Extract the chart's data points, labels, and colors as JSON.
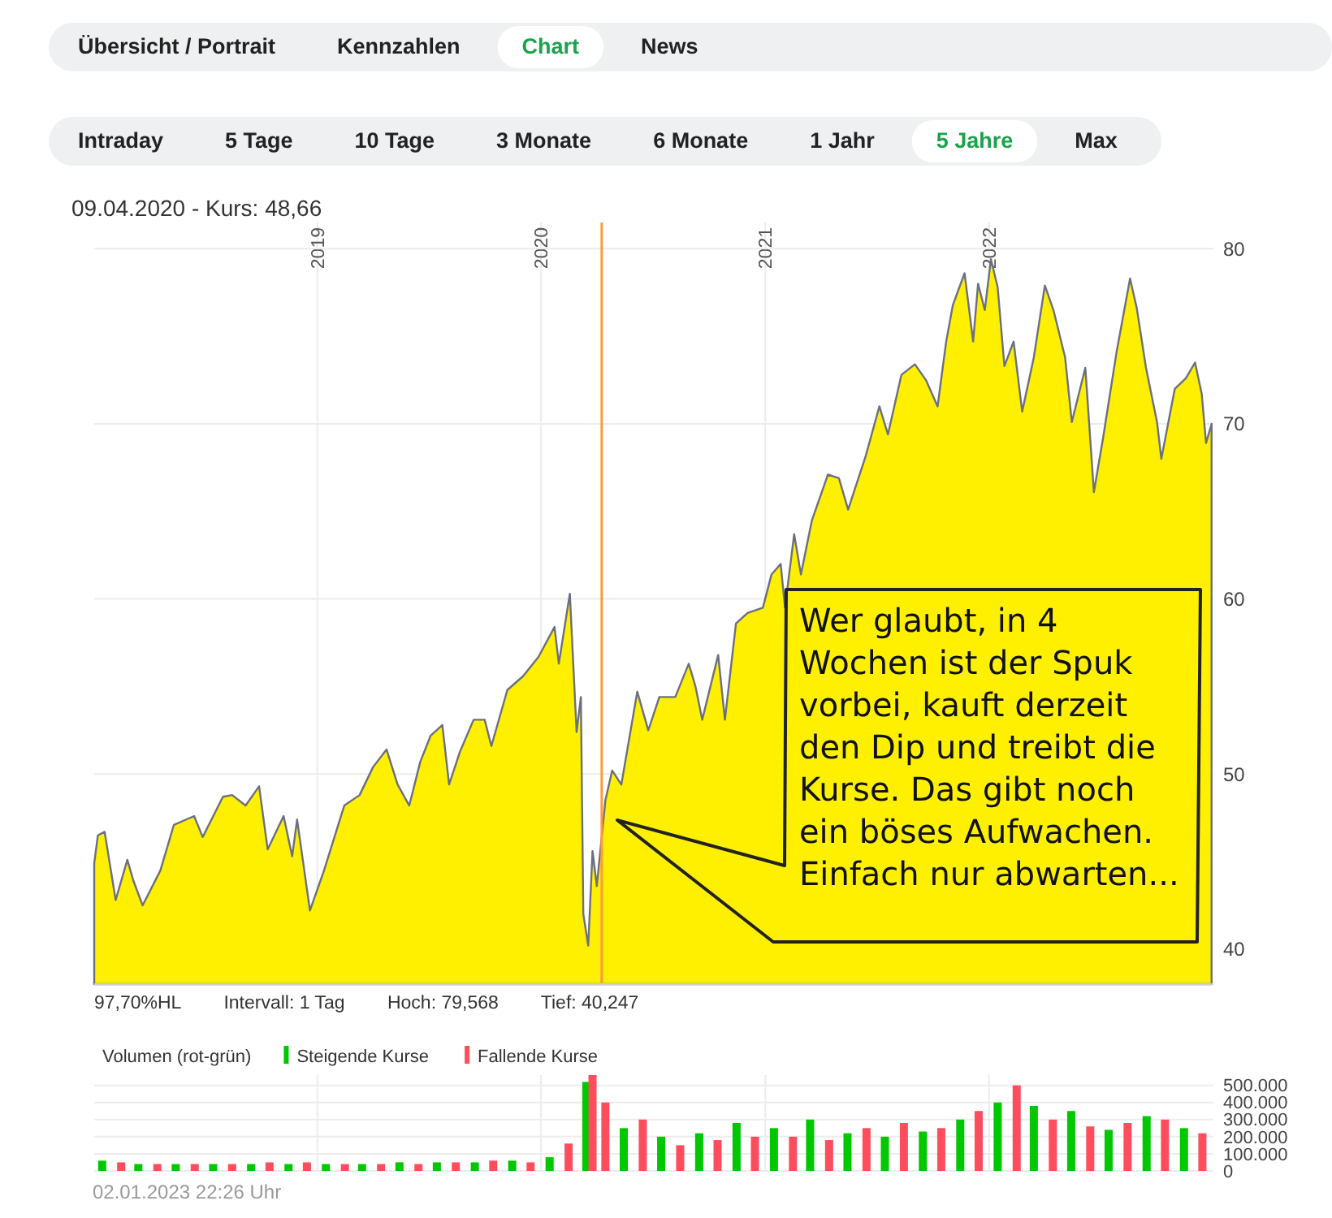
{
  "chart_data": [
    {
      "type": "other",
      "annotations": [
        "Übersicht / Portrait",
        "Kennzahlen",
        "Chart",
        "News"
      ]
    },
    {
      "type": "other",
      "annotations": [
        "Intraday",
        "5 Tage",
        "10 Tage",
        "3 Monate",
        "6 Monate",
        "1 Jahr",
        "5 Jahre",
        "Max"
      ]
    },
    {
      "type": "area",
      "title": "09.04.2020  -  Kurs: 48,66",
      "x": [
        "2018-01-02",
        "2018-01-08",
        "2018-01-19",
        "2018-02-06",
        "2018-02-25",
        "2018-03-07",
        "2018-03-22",
        "2018-04-20",
        "2018-05-12",
        "2018-06-14",
        "2018-06-28",
        "2018-07-31",
        "2018-08-15",
        "2018-09-06",
        "2018-09-28",
        "2018-10-12",
        "2018-11-07",
        "2018-11-21",
        "2018-11-29",
        "2018-12-20",
        "2019-01-12",
        "2019-02-14",
        "2019-03-11",
        "2019-04-02",
        "2019-04-24",
        "2019-05-12",
        "2019-05-31",
        "2019-06-18",
        "2019-07-05",
        "2019-07-24",
        "2019-08-04",
        "2019-08-22",
        "2019-09-13",
        "2019-10-01",
        "2019-10-12",
        "2019-11-07",
        "2019-12-03",
        "2019-12-28",
        "2020-01-23",
        "2020-01-30",
        "2020-02-17",
        "2020-02-28",
        "2020-03-06",
        "2020-03-10",
        "2020-03-18",
        "2020-03-25",
        "2020-04-01",
        "2020-04-15",
        "2020-04-26",
        "2020-05-11",
        "2020-06-06",
        "2020-06-24",
        "2020-07-12",
        "2020-07-23",
        "2020-08-07",
        "2020-08-29",
        "2020-09-09",
        "2020-09-20",
        "2020-10-16",
        "2020-10-27",
        "2020-11-14",
        "2020-12-03",
        "2020-12-28",
        "2021-01-11",
        "2021-01-26",
        "2021-02-02",
        "2021-02-17",
        "2021-02-28",
        "2021-03-18",
        "2021-04-13",
        "2021-05-01",
        "2021-05-16",
        "2021-06-14",
        "2021-07-06",
        "2021-07-20",
        "2021-08-11",
        "2021-09-02",
        "2021-09-20",
        "2021-10-09",
        "2021-10-23",
        "2021-11-03",
        "2021-11-22",
        "2021-12-06",
        "2021-12-14",
        "2021-12-25",
        "2022-01-04",
        "2022-01-15",
        "2022-01-26",
        "2022-02-10",
        "2022-02-24",
        "2022-03-15",
        "2022-04-02",
        "2022-04-16",
        "2022-05-05",
        "2022-05-16",
        "2022-06-07",
        "2022-06-21",
        "2022-07-06",
        "2022-07-28",
        "2022-08-19",
        "2022-08-30",
        "2022-09-14",
        "2022-10-02",
        "2022-10-09",
        "2022-10-31",
        "2022-11-18",
        "2022-12-03",
        "2022-12-14",
        "2022-12-21",
        "2022-12-30"
      ],
      "series": [
        {
          "color": "#fff000",
          "values": [
            44.9,
            46.5,
            46.7,
            42.8,
            45.1,
            43.9,
            42.5,
            44.5,
            47.1,
            47.6,
            46.4,
            48.7,
            48.8,
            48.2,
            49.3,
            45.7,
            47.6,
            45.3,
            47.4,
            42.2,
            44.5,
            48.2,
            48.8,
            50.4,
            51.4,
            49.4,
            48.2,
            50.7,
            52.2,
            52.8,
            49.4,
            51.3,
            53.1,
            53.1,
            51.6,
            54.8,
            55.6,
            56.7,
            58.4,
            56.3,
            60.3,
            52.4,
            54.4,
            42.0,
            40.2,
            45.6,
            43.6,
            48.5,
            50.2,
            49.4,
            54.7,
            52.5,
            54.4,
            54.4,
            54.4,
            56.3,
            55.0,
            53.1,
            56.8,
            53.1,
            58.6,
            59.2,
            59.5,
            61.4,
            62.0,
            59.5,
            63.7,
            61.4,
            64.5,
            67.1,
            66.9,
            65.1,
            68.2,
            71.0,
            69.4,
            72.8,
            73.4,
            72.5,
            71.0,
            74.7,
            76.8,
            78.6,
            74.7,
            78.0,
            76.5,
            79.4,
            77.8,
            73.3,
            74.7,
            70.7,
            73.8,
            77.9,
            76.5,
            73.8,
            70.1,
            73.2,
            66.1,
            69.2,
            74.1,
            78.3,
            76.6,
            73.2,
            70.1,
            68.0,
            72.0,
            72.6,
            73.5,
            71.7,
            68.9,
            70.0
          ]
        }
      ],
      "xlim": [
        "2018-01-02",
        "2023-01-02"
      ],
      "xticks": [
        {
          "value": "2019-01-01",
          "label": "2019"
        },
        {
          "value": "2020-01-01",
          "label": "2020"
        },
        {
          "value": "2021-01-01",
          "label": "2021"
        },
        {
          "value": "2022-01-01",
          "label": "2022"
        }
      ],
      "ylim": [
        38,
        81.5
      ],
      "yticks": [
        40,
        50,
        60,
        70,
        80
      ],
      "grid": true,
      "ref_lines": [
        {
          "axis": "x",
          "value": "2020-04-09",
          "color": "#ff9a3c"
        }
      ],
      "annotations": [
        "97,70%HL",
        "Intervall: 1 Tag",
        "Hoch: 79,568",
        "Tief: 40,247",
        "Wer glaubt, in 4 Wochen ist der Spuk vorbei, kauft derzeit den Dip und treibt die Kurse. Das gibt noch ein böses Aufwachen. Einfach nur abwarten..."
      ]
    },
    {
      "type": "bar",
      "legend_title": "Volumen (rot-grün)",
      "legend": "top left",
      "tick_labels": "y",
      "grid": true,
      "xlim": [
        "2018-01-02",
        "2023-01-02"
      ],
      "xticks": [
        {
          "value": "2019-01-01",
          "label": null
        },
        {
          "value": "2020-01-01",
          "label": null
        },
        {
          "value": "2021-01-01",
          "label": null
        },
        {
          "value": "2022-01-01",
          "label": null
        }
      ],
      "ylim": [
        0,
        560000
      ],
      "yticks": [
        0,
        {
          "value": 100000,
          "label": "100.000"
        },
        {
          "value": 200000,
          "label": "200.000"
        },
        {
          "value": 300000,
          "label": "300.000"
        },
        {
          "value": 400000,
          "label": "400.000"
        },
        {
          "value": 500000,
          "label": "500.000"
        }
      ],
      "series": [
        {
          "name": "Steigende Kurse",
          "color": "#00c800",
          "x": [
            "2018-01-15",
            "2018-03-15",
            "2018-05-15",
            "2018-07-15",
            "2018-09-15",
            "2018-11-15",
            "2019-01-15",
            "2019-03-15",
            "2019-05-15",
            "2019-07-15",
            "2019-09-15",
            "2019-11-15",
            "2020-01-15",
            "2020-03-15",
            "2020-05-15",
            "2020-07-15",
            "2020-09-15",
            "2020-11-15",
            "2021-01-15",
            "2021-03-15",
            "2021-05-15",
            "2021-07-15",
            "2021-09-15",
            "2021-11-15",
            "2022-01-15",
            "2022-03-15",
            "2022-05-15",
            "2022-07-15",
            "2022-09-15",
            "2022-11-15"
          ],
          "values": [
            60000,
            40000,
            40000,
            40000,
            40000,
            40000,
            40000,
            40000,
            50000,
            50000,
            50000,
            60000,
            80000,
            520000,
            250000,
            200000,
            220000,
            280000,
            250000,
            300000,
            220000,
            200000,
            230000,
            300000,
            400000,
            380000,
            350000,
            240000,
            320000,
            250000
          ]
        },
        {
          "name": "Fallende Kurse",
          "color": "#ff4d5e",
          "x": [
            "2018-02-15",
            "2018-04-15",
            "2018-06-15",
            "2018-08-15",
            "2018-10-15",
            "2018-12-15",
            "2019-02-15",
            "2019-04-15",
            "2019-06-15",
            "2019-08-15",
            "2019-10-15",
            "2019-12-15",
            "2020-02-15",
            "2020-03-25",
            "2020-04-15",
            "2020-06-15",
            "2020-08-15",
            "2020-10-15",
            "2020-12-15",
            "2021-02-15",
            "2021-04-15",
            "2021-06-15",
            "2021-08-15",
            "2021-10-15",
            "2021-12-15",
            "2022-02-15",
            "2022-04-15",
            "2022-06-15",
            "2022-08-15",
            "2022-10-15",
            "2022-12-15"
          ],
          "values": [
            50000,
            40000,
            40000,
            40000,
            50000,
            50000,
            40000,
            40000,
            40000,
            50000,
            60000,
            50000,
            160000,
            560000,
            400000,
            300000,
            150000,
            180000,
            200000,
            200000,
            180000,
            250000,
            280000,
            250000,
            350000,
            500000,
            300000,
            260000,
            280000,
            300000,
            220000
          ]
        }
      ],
      "annotations": [
        "02.01.2023 22:26 Uhr"
      ]
    }
  ]
}
